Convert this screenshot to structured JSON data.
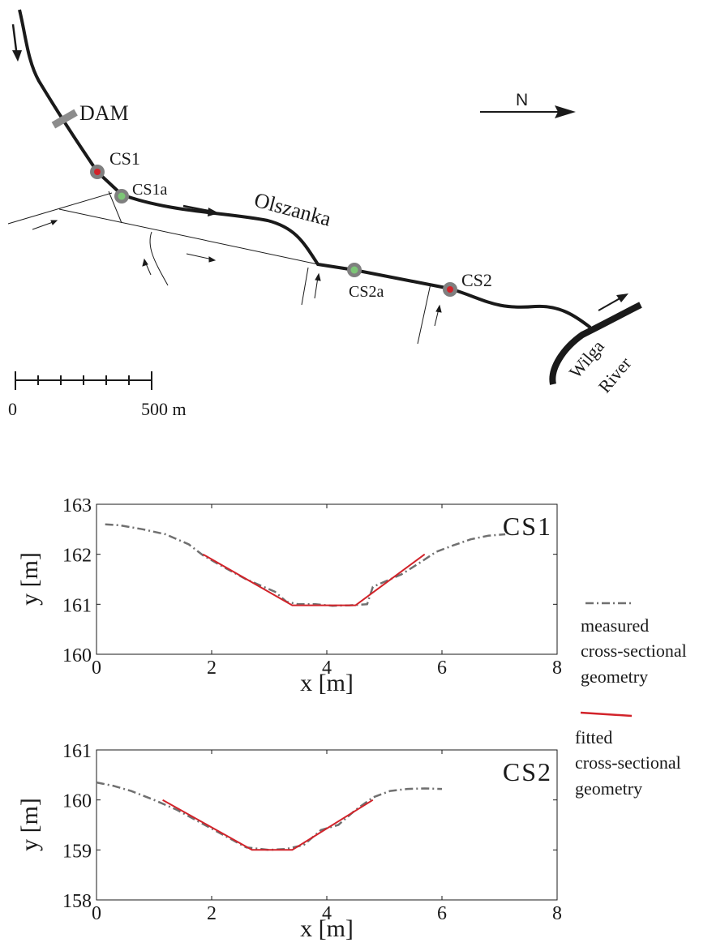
{
  "map": {
    "north_label": "N",
    "stream_name": "Olszanka",
    "river_name_line1": "Wilga",
    "river_name_line2": "River",
    "dam_label": "DAM",
    "sites": [
      {
        "label": "CS1",
        "color": "#d2232a"
      },
      {
        "label": "CS1a",
        "color": "#7cc576"
      },
      {
        "label": "CS2a",
        "color": "#7cc576"
      },
      {
        "label": "CS2",
        "color": "#d2232a"
      }
    ],
    "scale": {
      "start_label": "0",
      "end_label": "500 m"
    }
  },
  "legend": {
    "measured_line1": "measured",
    "measured_line2": "cross-sectional",
    "measured_line3": "geometry",
    "fitted_line1": "fitted",
    "fitted_line2": "cross-sectional",
    "fitted_line3": "geometry"
  },
  "colors": {
    "measured": "#707070",
    "fitted": "#d2232a"
  },
  "chart_data": [
    {
      "type": "line",
      "title": "CS1",
      "xlabel": "x [m]",
      "ylabel": "y [m]",
      "xlim": [
        0,
        8
      ],
      "ylim": [
        160,
        163
      ],
      "xticks": [
        0,
        2,
        4,
        6,
        8
      ],
      "yticks": [
        160,
        161,
        162,
        163
      ],
      "grid": false,
      "series": [
        {
          "name": "measured cross-sectional geometry",
          "style": "dash-dot",
          "x": [
            0.15,
            0.4,
            0.8,
            1.2,
            1.6,
            1.85,
            2.2,
            2.6,
            2.9,
            3.1,
            3.3,
            3.5,
            3.8,
            4.1,
            4.4,
            4.7,
            4.8,
            5.0,
            5.3,
            5.6,
            5.9,
            6.2,
            6.5,
            6.8,
            7.1
          ],
          "y": [
            162.6,
            162.58,
            162.5,
            162.4,
            162.2,
            161.98,
            161.75,
            161.5,
            161.35,
            161.25,
            161.05,
            161.0,
            161.0,
            160.97,
            160.98,
            161.0,
            161.35,
            161.45,
            161.6,
            161.82,
            162.05,
            162.18,
            162.3,
            162.37,
            162.4
          ]
        },
        {
          "name": "fitted cross-sectional geometry",
          "style": "solid",
          "x": [
            1.85,
            3.4,
            4.5,
            5.7
          ],
          "y": [
            162.0,
            160.98,
            160.98,
            162.0
          ]
        }
      ]
    },
    {
      "type": "line",
      "title": "CS2",
      "xlabel": "x [m]",
      "ylabel": "y [m]",
      "xlim": [
        0,
        8
      ],
      "ylim": [
        158,
        161
      ],
      "xticks": [
        0,
        2,
        4,
        6,
        8
      ],
      "yticks": [
        158,
        159,
        160,
        161
      ],
      "grid": false,
      "series": [
        {
          "name": "measured cross-sectional geometry",
          "style": "dash-dot",
          "x": [
            0.0,
            0.3,
            0.6,
            1.0,
            1.4,
            1.8,
            2.2,
            2.6,
            3.0,
            3.3,
            3.6,
            3.9,
            4.2,
            4.5,
            4.8,
            5.1,
            5.4,
            5.7,
            6.0
          ],
          "y": [
            160.35,
            160.28,
            160.18,
            160.0,
            159.8,
            159.55,
            159.3,
            159.05,
            159.0,
            159.02,
            159.1,
            159.4,
            159.5,
            159.8,
            160.05,
            160.18,
            160.22,
            160.23,
            160.22
          ]
        },
        {
          "name": "fitted cross-sectional geometry",
          "style": "solid",
          "x": [
            1.15,
            2.7,
            3.4,
            4.8
          ],
          "y": [
            160.0,
            159.0,
            159.0,
            160.0
          ]
        }
      ]
    }
  ]
}
